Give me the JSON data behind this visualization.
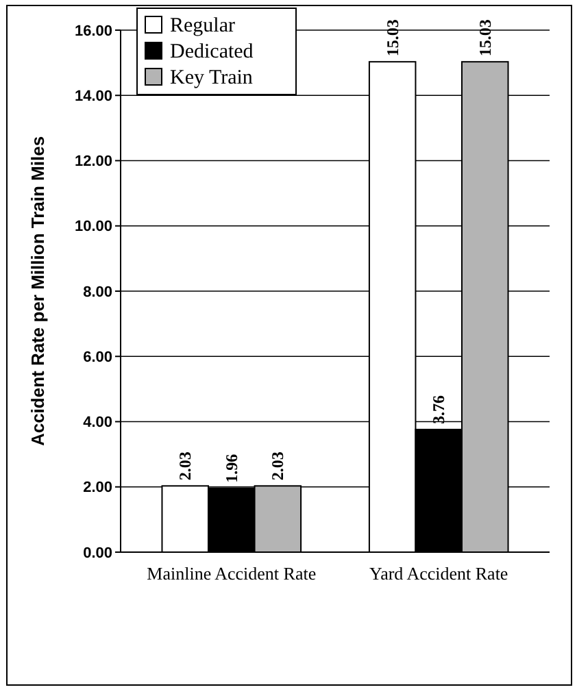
{
  "chart_data": {
    "type": "bar",
    "ylabel": "Accident Rate per Million Train Miles",
    "categories": [
      "Mainline Accident Rate",
      "Yard Accident Rate"
    ],
    "series": [
      {
        "name": "Regular",
        "color": "#ffffff",
        "values": [
          2.03,
          15.03
        ]
      },
      {
        "name": "Dedicated",
        "color": "#000000",
        "values": [
          1.96,
          3.76
        ]
      },
      {
        "name": "Key Train",
        "color": "#b4b4b4",
        "values": [
          2.03,
          15.03
        ]
      }
    ],
    "ylim": [
      0,
      16
    ],
    "yticks": [
      {
        "value": 0,
        "label": "0.00"
      },
      {
        "value": 2,
        "label": "2.00"
      },
      {
        "value": 4,
        "label": "4.00"
      },
      {
        "value": 6,
        "label": "6.00"
      },
      {
        "value": 8,
        "label": "8.00"
      },
      {
        "value": 10,
        "label": "10.00"
      },
      {
        "value": 12,
        "label": "12.00"
      },
      {
        "value": 14,
        "label": "14.00"
      },
      {
        "value": 16,
        "label": "16.00"
      }
    ],
    "grid": "y",
    "legend": "top left",
    "data_labels": true
  }
}
